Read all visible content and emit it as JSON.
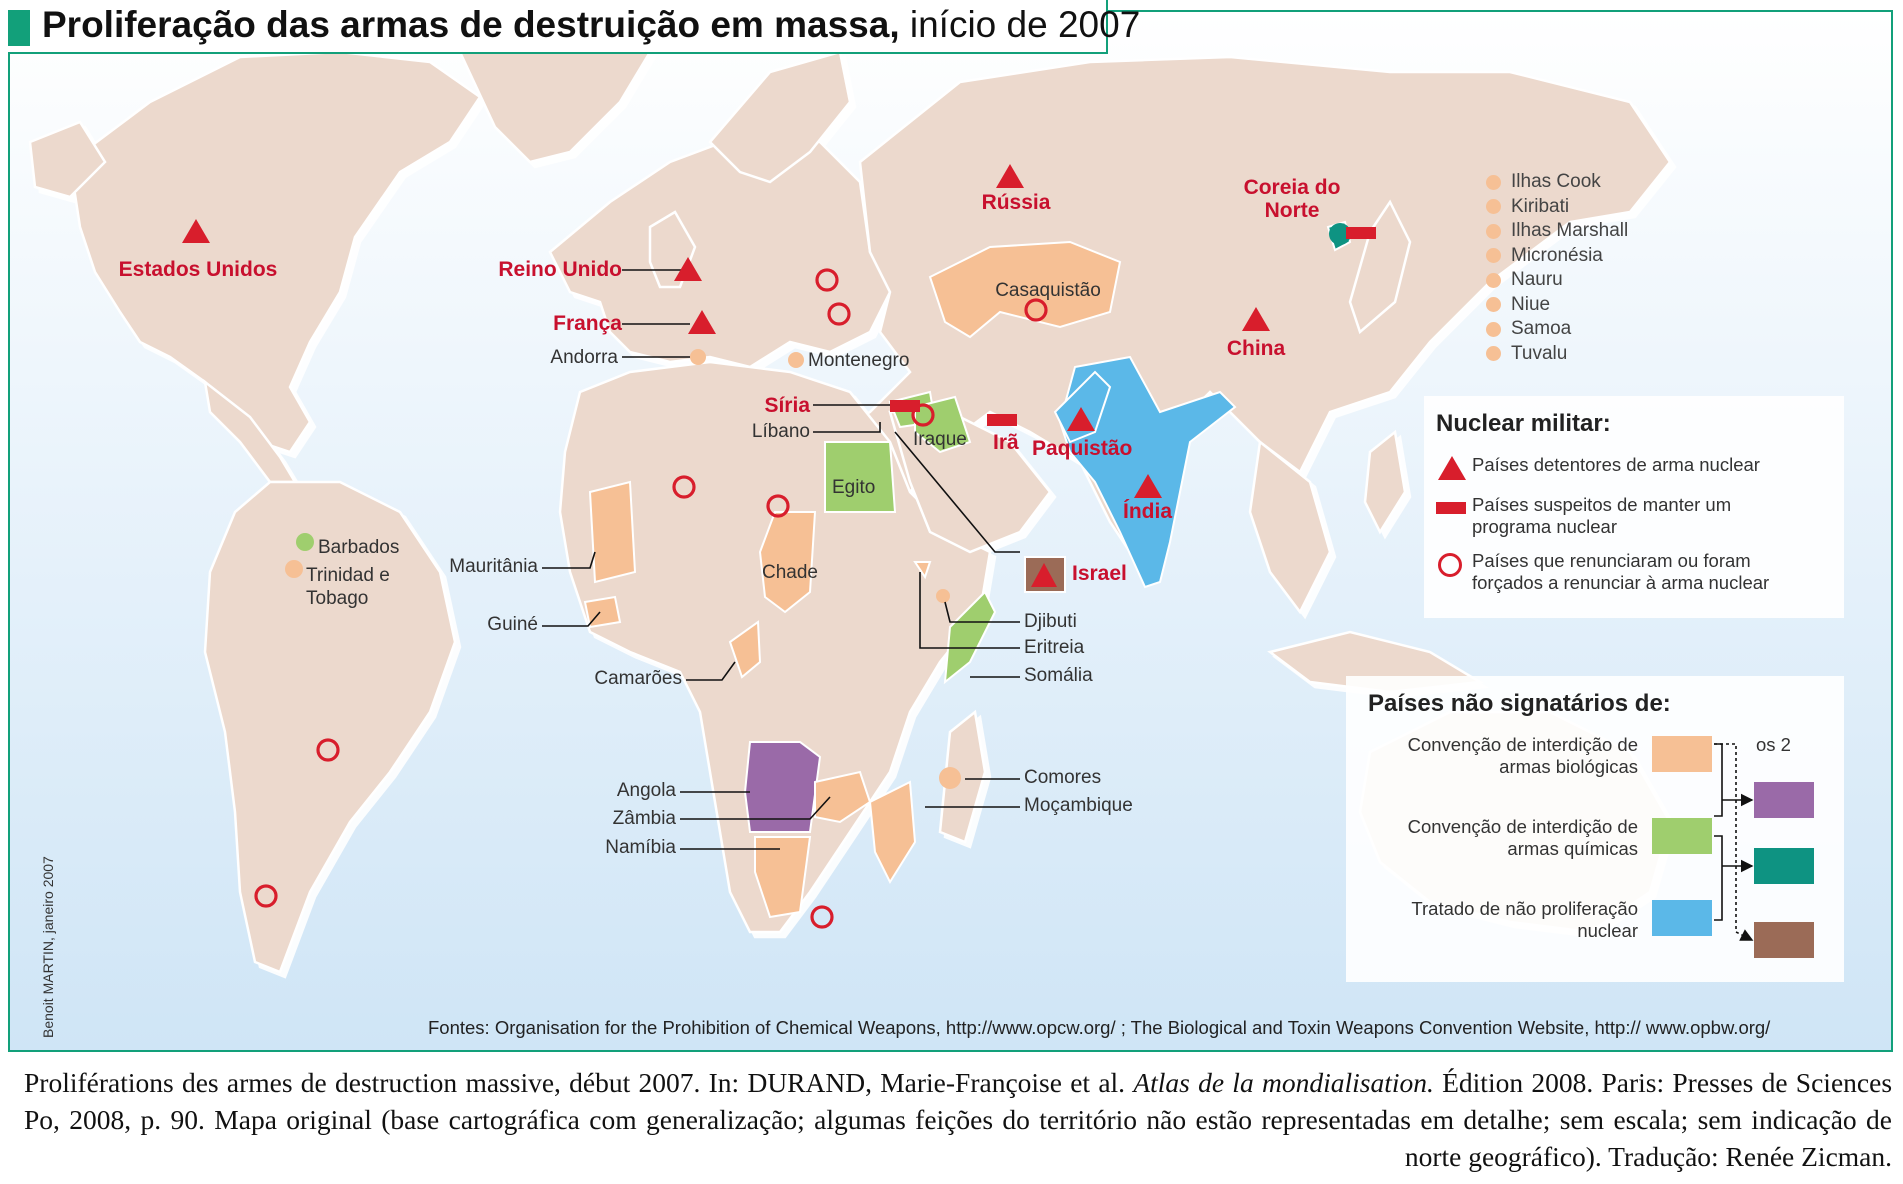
{
  "title": {
    "bold": "Proliferação das armas de destruição em massa,",
    "regular": " início de 2007"
  },
  "colors": {
    "land": "#ecd9cd",
    "nuclear_red": "#d81e2c",
    "bio": "#f6c095",
    "chem": "#9fce6e",
    "npt": "#5bb8e8",
    "bio_chem": "#9a6aa8",
    "chem_npt": "#0e9382",
    "bio_npt": "#9b6b57",
    "frame": "#12a07a"
  },
  "countries": {
    "usa": "Estados Unidos",
    "uk": "Reino Unido",
    "france": "França",
    "andorra": "Andorra",
    "montenegro": "Montenegro",
    "russia": "Rússia",
    "nkorea": "Coreia do Norte",
    "kazakhstan": "Casaquistão",
    "china": "China",
    "syria": "Síria",
    "lebanon": "Líbano",
    "iraq": "Iraque",
    "iran": "Irã",
    "pakistan": "Paquistão",
    "india": "Índia",
    "israel": "Israel",
    "egypt": "Egito",
    "chad": "Chade",
    "mauritania": "Mauritânia",
    "guinea": "Guiné",
    "cameroon": "Camarões",
    "barbados": "Barbados",
    "trinidad": "Trinidad e Tobago",
    "djibouti": "Djibuti",
    "eritrea": "Eritreia",
    "somalia": "Somália",
    "angola": "Angola",
    "zambia": "Zâmbia",
    "namibia": "Namíbia",
    "comoros": "Comores",
    "mozambique": "Moçambique"
  },
  "pacific_islands": [
    "Ilhas Cook",
    "Kiribati",
    "Ilhas Marshall",
    "Micronésia",
    "Nauru",
    "Niue",
    "Samoa",
    "Tuvalu"
  ],
  "legend_nuclear": {
    "title": "Nuclear militar:",
    "items": [
      {
        "symbol": "triangle-icon",
        "label": "Países detentores de arma nuclear"
      },
      {
        "symbol": "bar-icon",
        "label": "Países suspeitos de manter um programa nuclear"
      },
      {
        "symbol": "ring-icon",
        "label": "Países que renunciaram ou foram forçados a renunciar à arma nuclear"
      }
    ]
  },
  "legend_treaty": {
    "title": "Países não signatários de:",
    "bio": "Convenção de interdição de armas biológicas",
    "chem": "Convenção de interdição de armas químicas",
    "npt": "Tratado de não proliferação nuclear",
    "both": "os 2"
  },
  "credit": "Benoit MARTIN, janeiro 2007",
  "sources": "Fontes: Organisation for the Prohibition of Chemical Weapons, http://www.opcw.org/ ; The Biological and Toxin Weapons Convention Website, http:// www.opbw.org/",
  "caption": {
    "part1": "Proliférations des armes de destruction massive, début 2007. In: DURAND, Marie-Françoise et al. ",
    "book": "Atlas de la mondialisation.",
    "part2": " Édition 2008. Paris: Presses de Sciences Po, 2008, p. 90. Mapa original (base cartográfica com generalização; algumas feições do território não estão representadas em detalhe; sem escala; sem indicação de norte geográfico). Tradução: Renée Zicman."
  }
}
